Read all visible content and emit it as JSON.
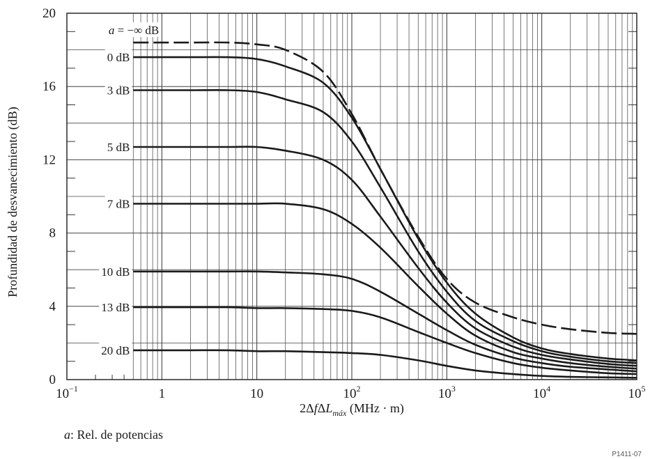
{
  "chart_data": {
    "type": "line",
    "xscale": "log",
    "xlim": [
      0.1,
      100000
    ],
    "ylim": [
      0,
      20
    ],
    "grid": true,
    "xlabel": "2ΔfΔL_máx (MHz · m)",
    "ylabel": "Profundidad de desvanecimiento (dB)",
    "x_ticks": [
      {
        "base": "10",
        "exp": "−1",
        "value": 0.1
      },
      {
        "base": "1",
        "exp": "",
        "value": 1
      },
      {
        "base": "10",
        "exp": "",
        "value": 10
      },
      {
        "base": "10",
        "exp": "2",
        "value": 100
      },
      {
        "base": "10",
        "exp": "3",
        "value": 1000
      },
      {
        "base": "10",
        "exp": "4",
        "value": 10000
      },
      {
        "base": "10",
        "exp": "5",
        "value": 100000
      }
    ],
    "y_ticks": [
      "0",
      "4",
      "8",
      "12",
      "16",
      "20"
    ],
    "x": [
      0.5,
      1,
      2,
      5,
      10,
      20,
      50,
      100,
      200,
      500,
      1000,
      2000,
      5000,
      10000,
      20000,
      50000,
      100000
    ],
    "series": [
      {
        "name": "a = −∞ dB",
        "dashed": true,
        "values": [
          18.4,
          18.4,
          18.4,
          18.4,
          18.3,
          18.0,
          16.8,
          14.5,
          11.5,
          7.8,
          5.5,
          4.2,
          3.4,
          3.0,
          2.75,
          2.55,
          2.5
        ]
      },
      {
        "name": "0 dB",
        "dashed": false,
        "values": [
          17.6,
          17.6,
          17.6,
          17.6,
          17.5,
          17.1,
          16.2,
          14.3,
          11.5,
          7.7,
          5.3,
          3.6,
          2.3,
          1.7,
          1.4,
          1.15,
          1.05
        ]
      },
      {
        "name": "3 dB",
        "dashed": false,
        "values": [
          15.8,
          15.8,
          15.8,
          15.8,
          15.7,
          15.3,
          14.6,
          13.0,
          10.5,
          7.0,
          4.8,
          3.2,
          2.1,
          1.55,
          1.25,
          1.0,
          0.9
        ]
      },
      {
        "name": "5 dB",
        "dashed": false,
        "values": [
          12.7,
          12.7,
          12.7,
          12.7,
          12.7,
          12.5,
          12.0,
          10.9,
          8.9,
          6.1,
          4.2,
          2.8,
          1.8,
          1.35,
          1.1,
          0.85,
          0.75
        ]
      },
      {
        "name": "7 dB",
        "dashed": false,
        "values": [
          9.6,
          9.6,
          9.6,
          9.6,
          9.6,
          9.6,
          9.3,
          8.5,
          7.2,
          5.1,
          3.6,
          2.4,
          1.5,
          1.15,
          0.9,
          0.7,
          0.6
        ]
      },
      {
        "name": "10 dB",
        "dashed": false,
        "values": [
          5.9,
          5.9,
          5.9,
          5.9,
          5.9,
          5.85,
          5.75,
          5.5,
          4.8,
          3.6,
          2.7,
          1.9,
          1.2,
          0.9,
          0.7,
          0.55,
          0.45
        ]
      },
      {
        "name": "13 dB",
        "dashed": false,
        "values": [
          3.95,
          3.95,
          3.95,
          3.95,
          3.9,
          3.9,
          3.85,
          3.75,
          3.4,
          2.6,
          2.0,
          1.45,
          0.9,
          0.65,
          0.5,
          0.35,
          0.3
        ]
      },
      {
        "name": "20 dB",
        "dashed": false,
        "values": [
          1.6,
          1.6,
          1.6,
          1.6,
          1.55,
          1.55,
          1.5,
          1.45,
          1.35,
          1.05,
          0.75,
          0.5,
          0.3,
          0.2,
          0.15,
          0.12,
          0.1
        ]
      }
    ],
    "footnote": {
      "symbol": "a",
      "text": ": Rel. de  potencias"
    },
    "figure_id": "P1411-07"
  }
}
